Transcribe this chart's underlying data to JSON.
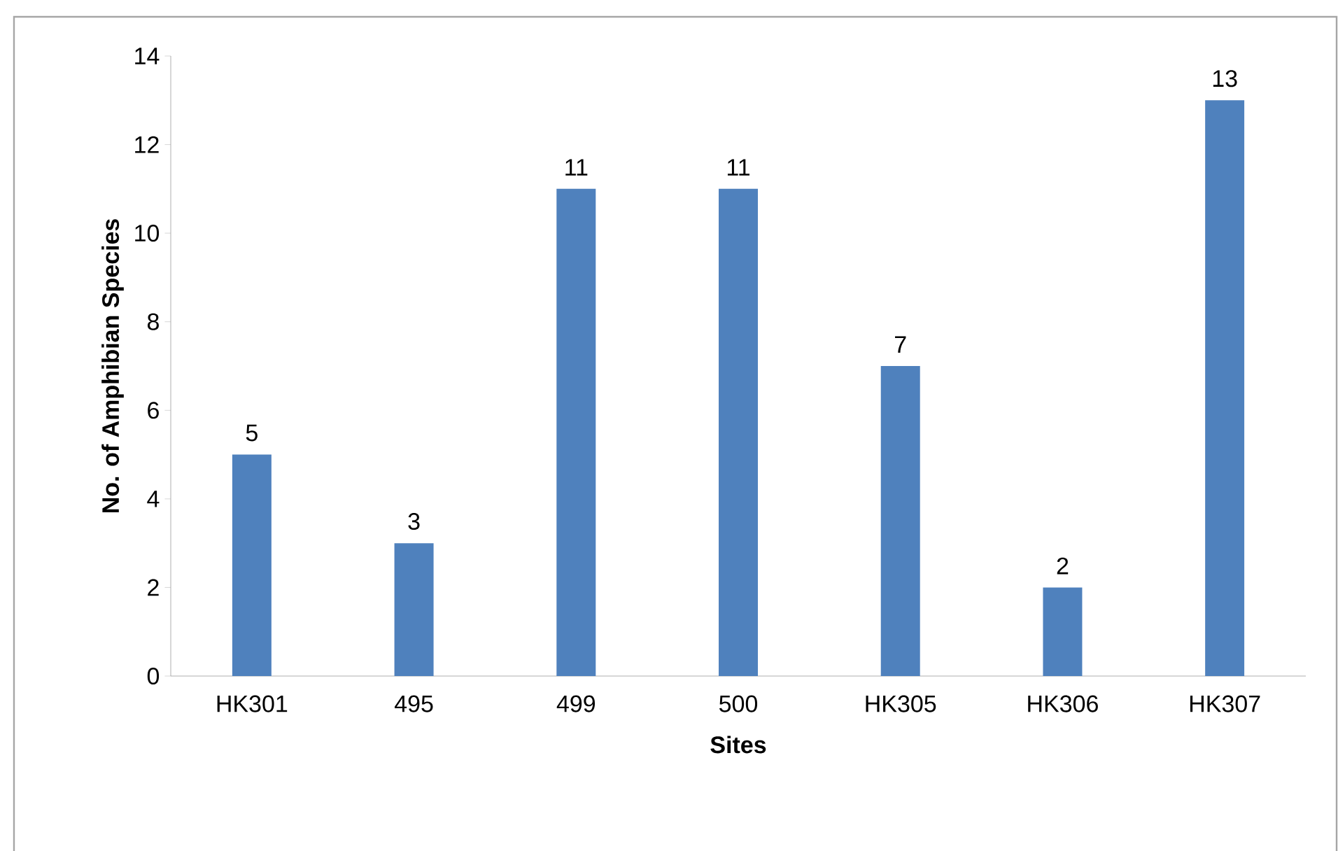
{
  "chart_data": {
    "type": "bar",
    "xlabel": "Sites",
    "ylabel": "No. of Amphibian Species",
    "categories": [
      "HK301",
      "495",
      "499",
      "500",
      "HK305",
      "HK306",
      "HK307"
    ],
    "values": [
      5,
      3,
      11,
      11,
      7,
      2,
      13
    ],
    "color": "#4f81bd",
    "ylim": [
      0,
      14
    ],
    "yticks": [
      0,
      2,
      4,
      6,
      8,
      10,
      12,
      14
    ],
    "grid": false,
    "data_labels": true
  }
}
